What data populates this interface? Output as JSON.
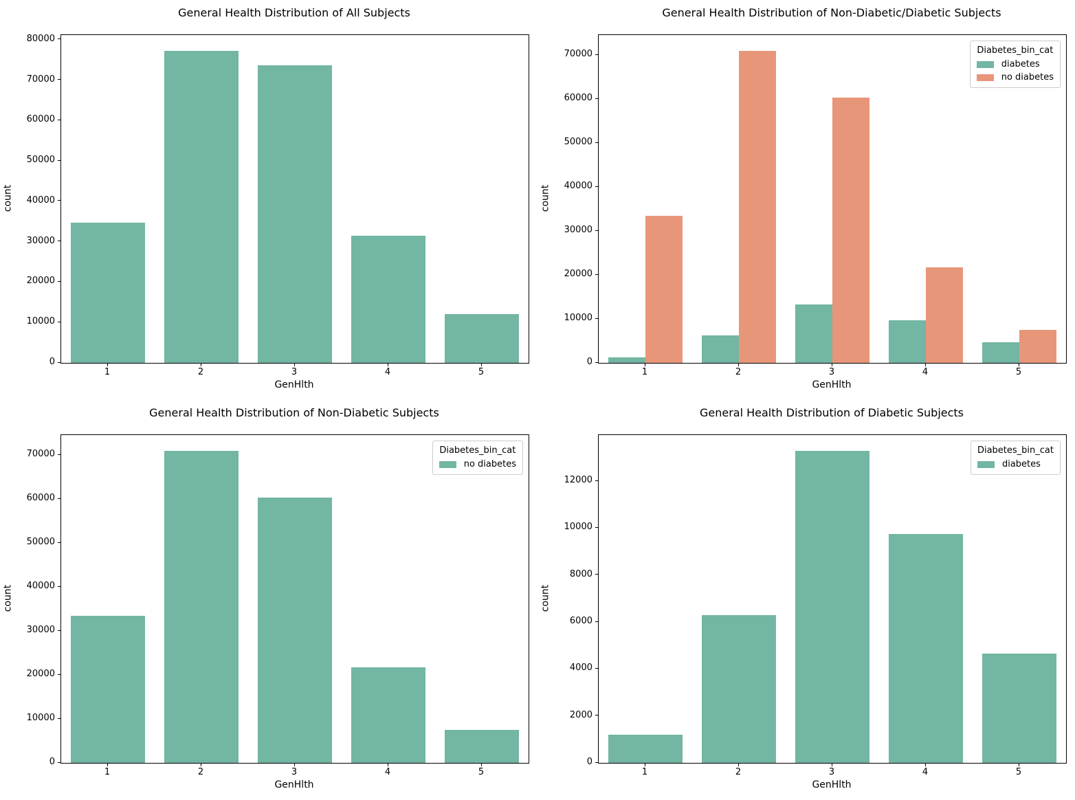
{
  "figure": {
    "background": "#ffffff",
    "axis_color": "#000000",
    "text_color": "#000000"
  },
  "palette": {
    "green": "#72b6a3",
    "orange": "#e8967a"
  },
  "chart_data": [
    {
      "type": "bar",
      "title": "General Health Distribution of All Subjects",
      "xlabel": "GenHlth",
      "ylabel": "count",
      "categories": [
        "1",
        "2",
        "3",
        "4",
        "5"
      ],
      "series": [
        {
          "name": "all subjects",
          "color": "green",
          "values": [
            34700,
            77300,
            73600,
            31450,
            12150
          ]
        }
      ],
      "ylim": [
        0,
        81165
      ],
      "ytick_step": 10000,
      "ytick_labels": [
        "0",
        "10000",
        "20000",
        "30000",
        "40000",
        "50000",
        "60000",
        "70000",
        "80000"
      ],
      "grid": false,
      "legend": null
    },
    {
      "type": "bar",
      "title": "General Health Distribution of Non-Diabetic/Diabetic Subjects",
      "xlabel": "GenHlth",
      "ylabel": "count",
      "categories": [
        "1",
        "2",
        "3",
        "4",
        "5"
      ],
      "series": [
        {
          "name": "diabetes",
          "color": "green",
          "values": [
            1200,
            6300,
            13300,
            9750,
            4650
          ]
        },
        {
          "name": "no diabetes",
          "color": "orange",
          "values": [
            33500,
            71000,
            60300,
            21700,
            7500
          ]
        }
      ],
      "ylim": [
        0,
        74550
      ],
      "ytick_step": 10000,
      "ytick_labels": [
        "0",
        "10000",
        "20000",
        "30000",
        "40000",
        "50000",
        "60000",
        "70000"
      ],
      "grid": false,
      "legend": {
        "title": "Diabetes_bin_cat",
        "position": "upper right",
        "entries": [
          {
            "label": "diabetes",
            "color": "green"
          },
          {
            "label": "no diabetes",
            "color": "orange"
          }
        ]
      }
    },
    {
      "type": "bar",
      "title": "General Health Distribution of Non-Diabetic Subjects",
      "xlabel": "GenHlth",
      "ylabel": "count",
      "categories": [
        "1",
        "2",
        "3",
        "4",
        "5"
      ],
      "series": [
        {
          "name": "no diabetes",
          "color": "green",
          "values": [
            33500,
            71000,
            60300,
            21700,
            7500
          ]
        }
      ],
      "ylim": [
        0,
        74550
      ],
      "ytick_step": 10000,
      "ytick_labels": [
        "0",
        "10000",
        "20000",
        "30000",
        "40000",
        "50000",
        "60000",
        "70000"
      ],
      "grid": false,
      "legend": {
        "title": "Diabetes_bin_cat",
        "position": "upper right",
        "entries": [
          {
            "label": "no diabetes",
            "color": "green"
          }
        ]
      }
    },
    {
      "type": "bar",
      "title": "General Health Distribution of Diabetic Subjects",
      "xlabel": "GenHlth",
      "ylabel": "count",
      "categories": [
        "1",
        "2",
        "3",
        "4",
        "5"
      ],
      "series": [
        {
          "name": "diabetes",
          "color": "green",
          "values": [
            1200,
            6300,
            13300,
            9750,
            4650
          ]
        }
      ],
      "ylim": [
        0,
        13965
      ],
      "ytick_step": 2000,
      "ytick_labels": [
        "0",
        "2000",
        "4000",
        "6000",
        "8000",
        "10000",
        "12000"
      ],
      "grid": false,
      "legend": {
        "title": "Diabetes_bin_cat",
        "position": "upper right",
        "entries": [
          {
            "label": "diabetes",
            "color": "green"
          }
        ]
      }
    }
  ]
}
